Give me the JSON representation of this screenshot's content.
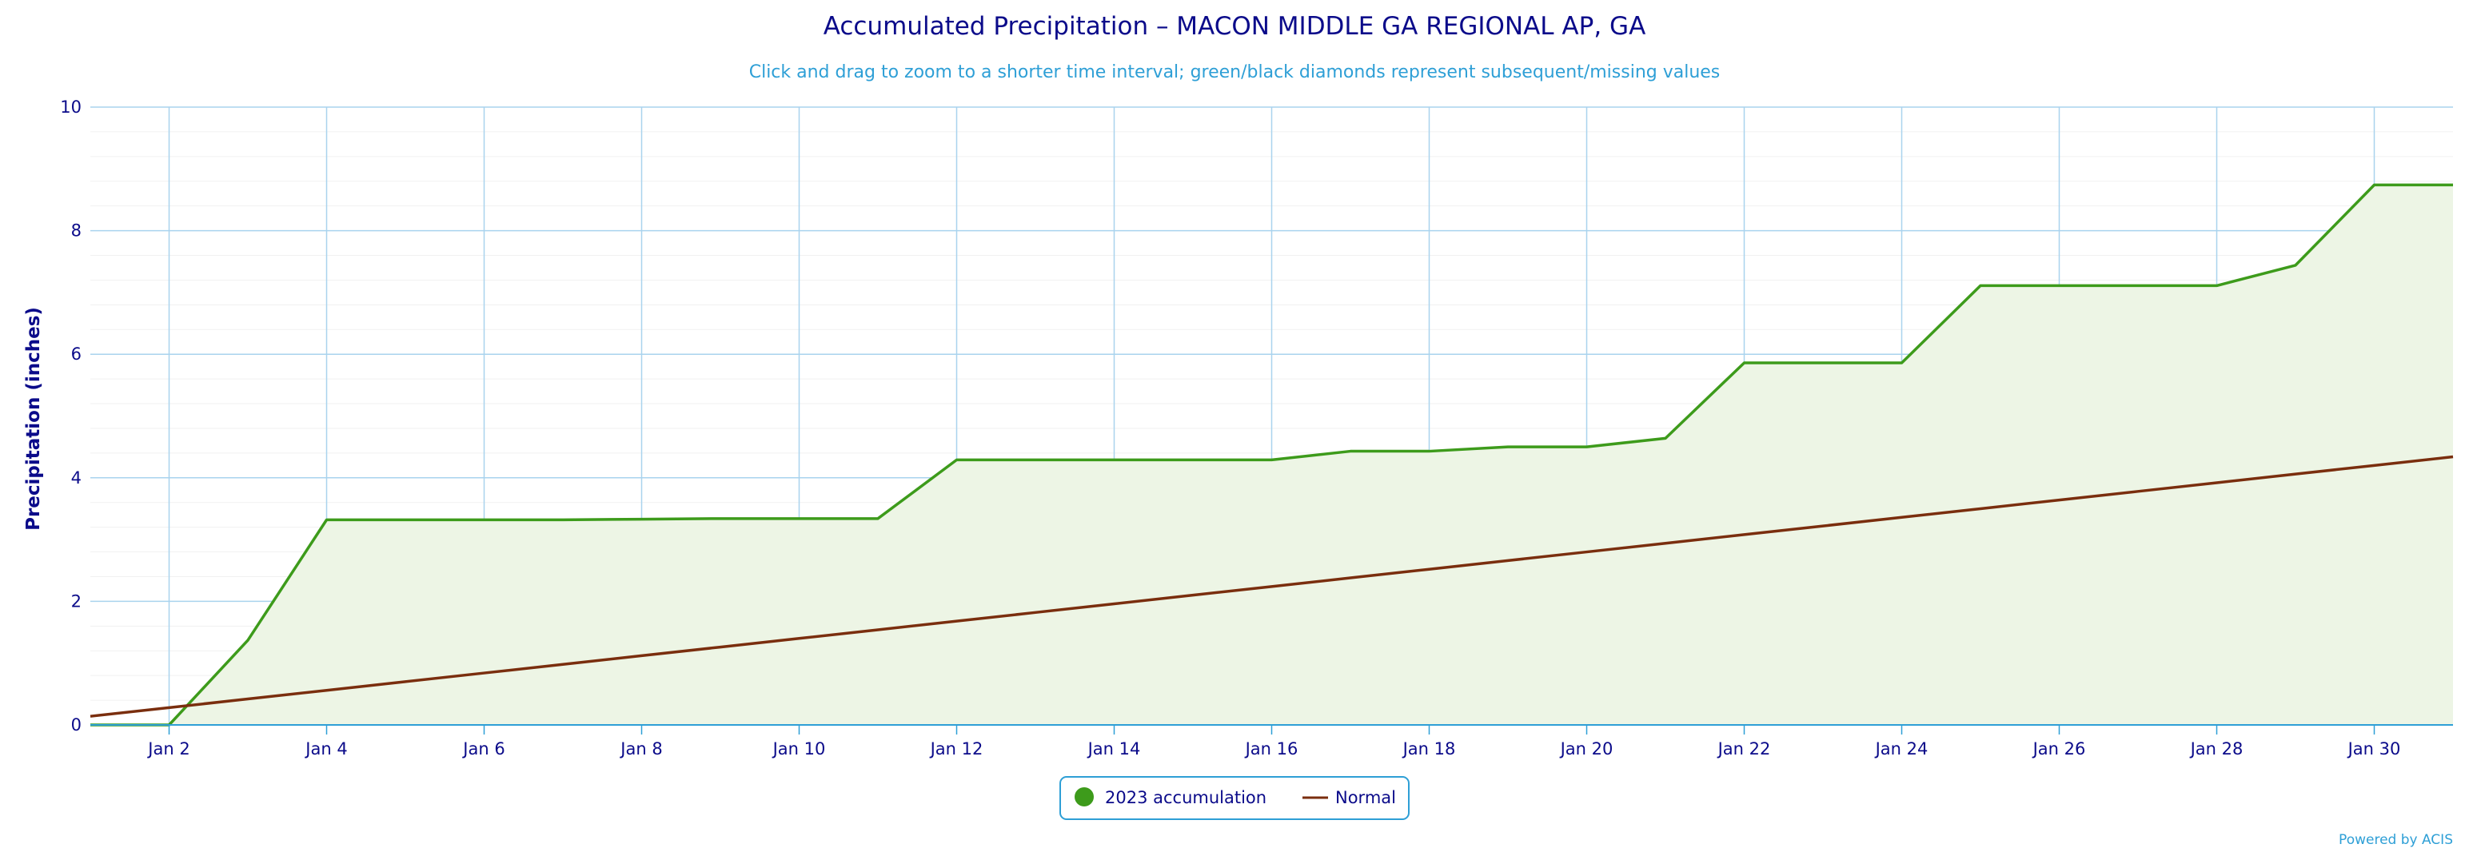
{
  "chart_data": {
    "type": "line",
    "title": "Accumulated Precipitation – MACON MIDDLE GA REGIONAL AP, GA",
    "subtitle": "Click and drag to zoom to a shorter time interval; green/black diamonds represent subsequent/missing values",
    "ylabel": "Precipitation (inches)",
    "ylim": [
      0,
      10
    ],
    "yticks": [
      0,
      2,
      4,
      6,
      8,
      10
    ],
    "xlim": [
      1,
      31
    ],
    "xticks": [
      {
        "day": 2,
        "label": "Jan 2"
      },
      {
        "day": 4,
        "label": "Jan 4"
      },
      {
        "day": 6,
        "label": "Jan 6"
      },
      {
        "day": 8,
        "label": "Jan 8"
      },
      {
        "day": 10,
        "label": "Jan 10"
      },
      {
        "day": 12,
        "label": "Jan 12"
      },
      {
        "day": 14,
        "label": "Jan 14"
      },
      {
        "day": 16,
        "label": "Jan 16"
      },
      {
        "day": 18,
        "label": "Jan 18"
      },
      {
        "day": 20,
        "label": "Jan 20"
      },
      {
        "day": 22,
        "label": "Jan 22"
      },
      {
        "day": 24,
        "label": "Jan 24"
      },
      {
        "day": 26,
        "label": "Jan 26"
      },
      {
        "day": 28,
        "label": "Jan 28"
      },
      {
        "day": 30,
        "label": "Jan 30"
      }
    ],
    "grid": true,
    "legend_position": "bottom-center",
    "series": [
      {
        "name": "2023 accumulation",
        "color": "#3d9b1b",
        "fill": "#edf5e5",
        "area": true,
        "x": [
          1,
          2,
          3,
          4,
          5,
          6,
          7,
          8,
          9,
          10,
          11,
          12,
          13,
          14,
          15,
          16,
          17,
          18,
          19,
          20,
          21,
          22,
          23,
          24,
          25,
          26,
          27,
          28,
          29,
          30,
          31
        ],
        "values": [
          0.0,
          0.0,
          1.37,
          3.32,
          3.32,
          3.32,
          3.32,
          3.33,
          3.34,
          3.34,
          3.34,
          4.29,
          4.29,
          4.29,
          4.29,
          4.29,
          4.43,
          4.43,
          4.5,
          4.5,
          4.64,
          5.86,
          5.86,
          5.86,
          7.11,
          7.11,
          7.11,
          7.11,
          7.44,
          8.74,
          8.74
        ]
      },
      {
        "name": "Normal",
        "color": "#7a2e0e",
        "area": false,
        "x": [
          1,
          2,
          3,
          4,
          5,
          6,
          7,
          8,
          9,
          10,
          11,
          12,
          13,
          14,
          15,
          16,
          17,
          18,
          19,
          20,
          21,
          22,
          23,
          24,
          25,
          26,
          27,
          28,
          29,
          30,
          31
        ],
        "values": [
          0.14,
          0.28,
          0.42,
          0.56,
          0.7,
          0.84,
          0.98,
          1.12,
          1.26,
          1.4,
          1.54,
          1.68,
          1.82,
          1.96,
          2.1,
          2.24,
          2.38,
          2.52,
          2.66,
          2.8,
          2.94,
          3.08,
          3.22,
          3.36,
          3.5,
          3.64,
          3.78,
          3.92,
          4.06,
          4.2,
          4.34
        ]
      }
    ]
  },
  "credits": "Powered by ACIS"
}
